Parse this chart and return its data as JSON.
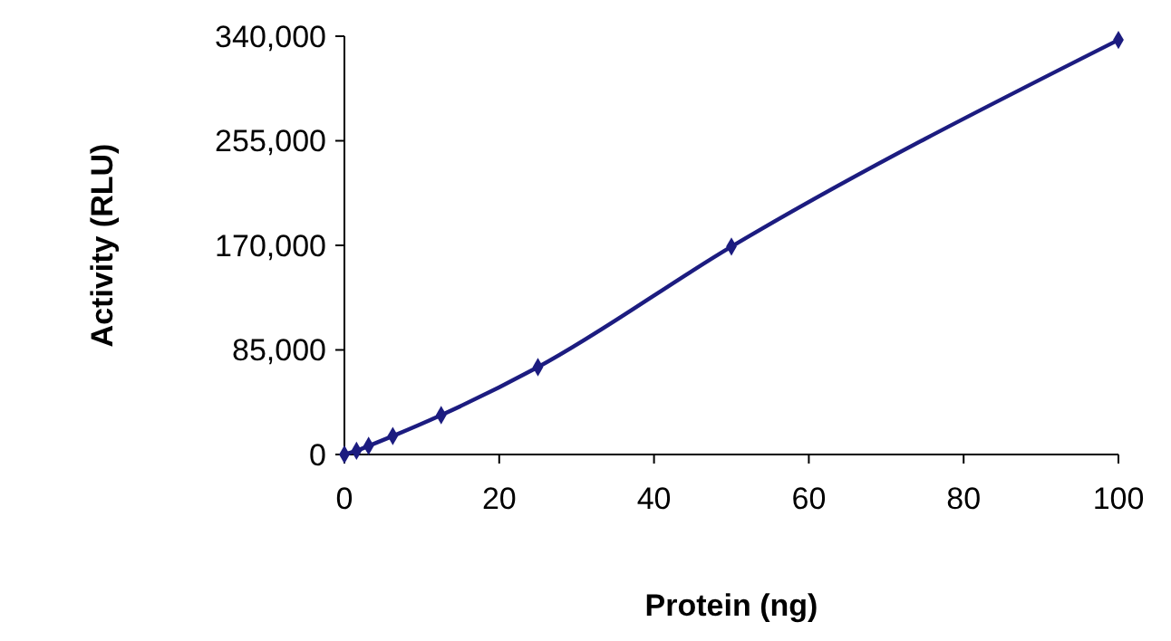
{
  "chart_data": {
    "type": "line",
    "xlabel": "Protein (ng)",
    "ylabel": "Activity (RLU)",
    "x": [
      0,
      1.5625,
      3.125,
      6.25,
      12.5,
      25,
      50,
      100
    ],
    "series": [
      {
        "color": "#1c1c80",
        "values": [
          0,
          3000,
          7000,
          15000,
          32000,
          71000,
          169000,
          337000
        ]
      }
    ],
    "xlim": [
      0,
      100
    ],
    "xticks": [
      0,
      20,
      40,
      60,
      80,
      100
    ],
    "ylim": [
      0,
      340000
    ],
    "yticks": [
      {
        "value": 0,
        "label": "0"
      },
      {
        "value": 85000,
        "label": "85,000"
      },
      {
        "value": 170000,
        "label": "170,000"
      },
      {
        "value": 255000,
        "label": "255,000"
      },
      {
        "value": 340000,
        "label": "340,000"
      }
    ],
    "marker": "diamond",
    "line_style": "solid",
    "grid": false
  }
}
